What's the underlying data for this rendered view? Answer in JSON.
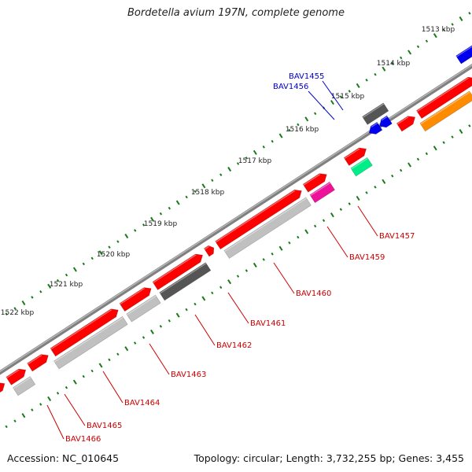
{
  "title": "Bordetella avium 197N, complete genome",
  "footer": {
    "accession": "Accession: NC_010645",
    "summary": "Topology: circular; Length: 3,732,255 bp; Genes: 3,455"
  },
  "colors": {
    "backbone": "#808080",
    "forward_strand": "#ff0000",
    "gray_dark": "#555555",
    "gray_light": "#c0c0c0",
    "blue": "#0000ee",
    "orange": "#ff8c00",
    "green": "#00ee88",
    "magenta": "#ee1199",
    "tick": "#1a7a1a",
    "gene_label": "#cc0000",
    "blue_label": "#0000cc"
  },
  "ticks": [
    "1513 kbp",
    "1514 kbp",
    "1515 kbp",
    "1516 kbp",
    "1517 kbp",
    "1518 kbp",
    "1519 kbp",
    "1520 kbp",
    "1521 kbp",
    "1522 kbp"
  ],
  "gene_labels": [
    {
      "text": "BAV1455",
      "color": "blue"
    },
    {
      "text": "BAV1456",
      "color": "blue"
    },
    {
      "text": "BAV1457",
      "color": "red"
    },
    {
      "text": "BAV1459",
      "color": "red"
    },
    {
      "text": "BAV1460",
      "color": "red"
    },
    {
      "text": "BAV1461",
      "color": "red"
    },
    {
      "text": "BAV1462",
      "color": "red"
    },
    {
      "text": "BAV1463",
      "color": "red"
    },
    {
      "text": "BAV1464",
      "color": "red"
    },
    {
      "text": "BAV1465",
      "color": "red"
    },
    {
      "text": "BAV1466",
      "color": "red"
    }
  ]
}
